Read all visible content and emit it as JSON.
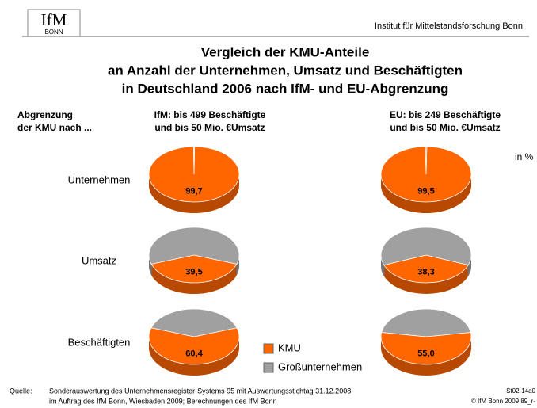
{
  "header": {
    "logo": "IfM",
    "logo_sub": "BONN",
    "institute": "Institut für Mittelstandsforschung Bonn"
  },
  "chart_data": {
    "type": "pie",
    "title": [
      "Vergleich der KMU-Anteile",
      "an Anzahl der Unternehmen, Umsatz und Beschäftigten",
      "in Deutschland 2006 nach IfM- und EU-Abgrenzung"
    ],
    "unit": "in %",
    "row_header": [
      "Abgrenzung",
      "der KMU nach ..."
    ],
    "categories": [
      "Unternehmen",
      "Umsatz",
      "Beschäftigten"
    ],
    "series": [
      {
        "name": "KMU",
        "color": "#ff6600"
      },
      {
        "name": "Großunternehmen",
        "color": "#a0a0a0"
      }
    ],
    "columns": [
      {
        "label": [
          "IfM: bis 499 Beschäftigte",
          "und bis 50 Mio. €Umsatz"
        ],
        "values": [
          [
            99.7,
            0.3
          ],
          [
            39.5,
            60.5
          ],
          [
            60.4,
            39.6
          ]
        ],
        "value_labels": [
          "99,7",
          "39,5",
          "60,4"
        ]
      },
      {
        "label": [
          "EU: bis 249 Beschäftigte",
          "und bis 50 Mio. €Umsatz"
        ],
        "values": [
          [
            99.5,
            0.5
          ],
          [
            38.3,
            61.7
          ],
          [
            55.0,
            45.0
          ]
        ],
        "value_labels": [
          "99,5",
          "38,3",
          "55,0"
        ]
      }
    ]
  },
  "footer": {
    "source_label": "Quelle:",
    "source": [
      "Sonderauswertung des Unternehmensregister-Systems 95 mit Auswertungsstichtag 31.12.2008",
      "im Auftrag des IfM Bonn, Wiesbaden 2009; Berechnungen des IfM Bonn"
    ],
    "code": [
      "St02-14a0",
      "© IfM Bonn 2009 89_r-"
    ]
  }
}
